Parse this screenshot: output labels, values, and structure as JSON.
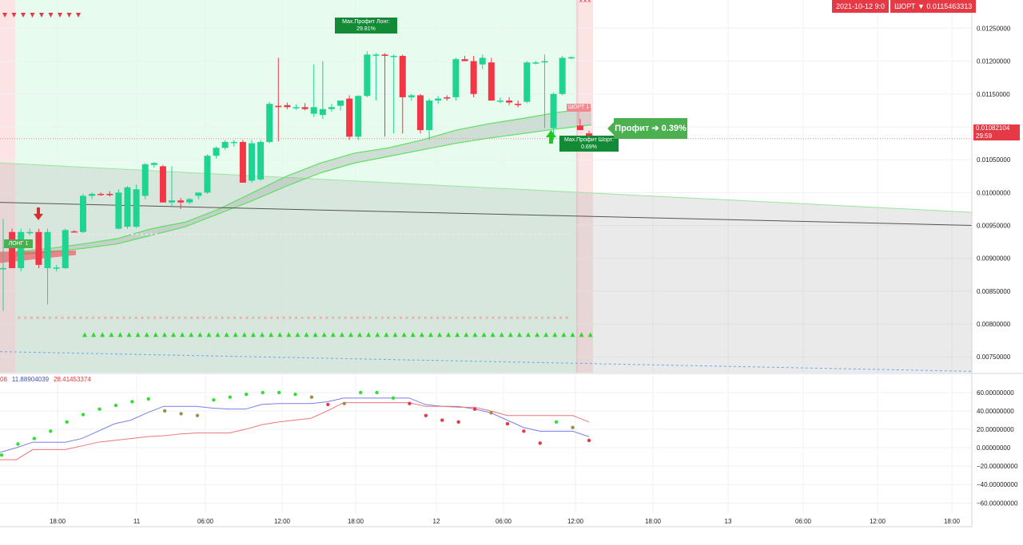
{
  "top_bar": {
    "date_label": "2021-10-12 9:0",
    "position_label": "ШОРТ",
    "position_arrow": "▼",
    "position_price": "0.0115463313"
  },
  "badges": {
    "max_profit_long_title": "Max.Профит Лонг:",
    "max_profit_long_value": "29.81%",
    "max_profit_short_title": "Max.Профит Шорт:",
    "max_profit_short_value": "0.69%",
    "profit_label": "Профит ➔ 0.39%",
    "short_tag": "ШОРТ 1",
    "long_tag": "ЛОНГ 1",
    "current_price": "0.01082104",
    "countdown": "29:59"
  },
  "indicator_legend": {
    "v1": "08",
    "v2": "11.88904039",
    "v3": "28.41453374",
    "color_v2": "#3f51b5",
    "color_v3": "#e53935"
  },
  "colors": {
    "up": "#1fd491",
    "down": "#f23645",
    "green_zone": "#e7fbee",
    "red_zone": "#fde4e4",
    "badge_green": "#138a36",
    "accent_red": "#e53945"
  },
  "chart_data": [
    {
      "type": "candlestick",
      "y_ticks": [
        "0.01250000",
        "0.01200000",
        "0.01150000",
        "0.01100000",
        "0.01050000",
        "0.01000000",
        "0.00950000",
        "0.00900000",
        "0.00850000",
        "0.00800000",
        "0.00750000"
      ],
      "y_tick_values": [
        0.0125,
        0.012,
        0.0115,
        0.011,
        0.0105,
        0.01,
        0.0095,
        0.009,
        0.0085,
        0.008,
        0.0075
      ],
      "ylim": [
        0.00726,
        0.01293
      ],
      "x_ticks": [
        "18:00",
        "11",
        "06:00",
        "12:00",
        "18:00",
        "12",
        "06:00",
        "12:00",
        "18:00",
        "13",
        "06:00",
        "12:00",
        "18:00"
      ],
      "candles": [
        {
          "o": 0.00885,
          "h": 0.0096,
          "l": 0.0082,
          "c": 0.00885
        },
        {
          "o": 0.0094,
          "h": 0.00945,
          "l": 0.00885,
          "c": 0.00885
        },
        {
          "o": 0.00885,
          "h": 0.00945,
          "l": 0.0088,
          "c": 0.0094
        },
        {
          "o": 0.00938,
          "h": 0.00945,
          "l": 0.00935,
          "c": 0.0094
        },
        {
          "o": 0.0094,
          "h": 0.00945,
          "l": 0.00885,
          "c": 0.0089
        },
        {
          "o": 0.00885,
          "h": 0.00945,
          "l": 0.0083,
          "c": 0.0094
        },
        {
          "o": 0.00885,
          "h": 0.0089,
          "l": 0.0088,
          "c": 0.00886
        },
        {
          "o": 0.00885,
          "h": 0.00945,
          "l": 0.00884,
          "c": 0.00943
        },
        {
          "o": 0.00941,
          "h": 0.00943,
          "l": 0.00939,
          "c": 0.0094
        },
        {
          "o": 0.0094,
          "h": 0.00998,
          "l": 0.00938,
          "c": 0.00995
        },
        {
          "o": 0.00995,
          "h": 0.01,
          "l": 0.0099,
          "c": 0.00998
        },
        {
          "o": 0.00998,
          "h": 0.01,
          "l": 0.00995,
          "c": 0.00997
        },
        {
          "o": 0.00998,
          "h": 0.01002,
          "l": 0.00994,
          "c": 0.00996
        },
        {
          "o": 0.00945,
          "h": 0.01005,
          "l": 0.00944,
          "c": 0.01
        },
        {
          "o": 0.00948,
          "h": 0.0101,
          "l": 0.00945,
          "c": 0.01008
        },
        {
          "o": 0.00948,
          "h": 0.01012,
          "l": 0.00946,
          "c": 0.01005
        },
        {
          "o": 0.00995,
          "h": 0.01045,
          "l": 0.0099,
          "c": 0.01043
        },
        {
          "o": 0.01042,
          "h": 0.01046,
          "l": 0.01038,
          "c": 0.01045
        },
        {
          "o": 0.0104,
          "h": 0.01042,
          "l": 0.00985,
          "c": 0.00985
        },
        {
          "o": 0.00985,
          "h": 0.0104,
          "l": 0.0098,
          "c": 0.00988
        },
        {
          "o": 0.00988,
          "h": 0.00992,
          "l": 0.00975,
          "c": 0.00985
        },
        {
          "o": 0.00985,
          "h": 0.00992,
          "l": 0.00982,
          "c": 0.0099
        },
        {
          "o": 0.00995,
          "h": 0.01,
          "l": 0.0099,
          "c": 0.01
        },
        {
          "o": 0.01,
          "h": 0.01058,
          "l": 0.00998,
          "c": 0.01056
        },
        {
          "o": 0.01056,
          "h": 0.0107,
          "l": 0.01052,
          "c": 0.01068
        },
        {
          "o": 0.01068,
          "h": 0.0108,
          "l": 0.01065,
          "c": 0.01077
        },
        {
          "o": 0.01076,
          "h": 0.0108,
          "l": 0.0107,
          "c": 0.01077
        },
        {
          "o": 0.01077,
          "h": 0.0108,
          "l": 0.01015,
          "c": 0.01015
        },
        {
          "o": 0.01018,
          "h": 0.0108,
          "l": 0.01015,
          "c": 0.01075
        },
        {
          "o": 0.0102,
          "h": 0.0108,
          "l": 0.01018,
          "c": 0.01077
        },
        {
          "o": 0.01077,
          "h": 0.01138,
          "l": 0.01075,
          "c": 0.01135
        },
        {
          "o": 0.01132,
          "h": 0.01205,
          "l": 0.01078,
          "c": 0.0113
        },
        {
          "o": 0.01133,
          "h": 0.01137,
          "l": 0.01127,
          "c": 0.0113
        },
        {
          "o": 0.0113,
          "h": 0.01134,
          "l": 0.01126,
          "c": 0.0113
        },
        {
          "o": 0.0113,
          "h": 0.01136,
          "l": 0.01125,
          "c": 0.01127
        },
        {
          "o": 0.0112,
          "h": 0.01195,
          "l": 0.01115,
          "c": 0.0113
        },
        {
          "o": 0.01118,
          "h": 0.012,
          "l": 0.01112,
          "c": 0.01127
        },
        {
          "o": 0.01127,
          "h": 0.01135,
          "l": 0.01123,
          "c": 0.0113
        },
        {
          "o": 0.01132,
          "h": 0.01138,
          "l": 0.01125,
          "c": 0.0114
        },
        {
          "o": 0.01143,
          "h": 0.01148,
          "l": 0.0108,
          "c": 0.01085
        },
        {
          "o": 0.01085,
          "h": 0.01148,
          "l": 0.0108,
          "c": 0.01147
        },
        {
          "o": 0.01147,
          "h": 0.01215,
          "l": 0.01145,
          "c": 0.0121
        },
        {
          "o": 0.0121,
          "h": 0.01212,
          "l": 0.0114,
          "c": 0.0121
        },
        {
          "o": 0.0121,
          "h": 0.01212,
          "l": 0.01085,
          "c": 0.01208
        },
        {
          "o": 0.01208,
          "h": 0.0121,
          "l": 0.0109,
          "c": 0.01208
        },
        {
          "o": 0.01208,
          "h": 0.0121,
          "l": 0.0109,
          "c": 0.01145
        },
        {
          "o": 0.01145,
          "h": 0.0115,
          "l": 0.0114,
          "c": 0.01148
        },
        {
          "o": 0.01148,
          "h": 0.0115,
          "l": 0.0109,
          "c": 0.01095
        },
        {
          "o": 0.01095,
          "h": 0.01143,
          "l": 0.0108,
          "c": 0.0114
        },
        {
          "o": 0.0114,
          "h": 0.01147,
          "l": 0.01135,
          "c": 0.01143
        },
        {
          "o": 0.01145,
          "h": 0.01148,
          "l": 0.0114,
          "c": 0.01143
        },
        {
          "o": 0.01145,
          "h": 0.01205,
          "l": 0.0114,
          "c": 0.01203
        },
        {
          "o": 0.01203,
          "h": 0.01208,
          "l": 0.012,
          "c": 0.012
        },
        {
          "o": 0.012,
          "h": 0.01208,
          "l": 0.01145,
          "c": 0.0115
        },
        {
          "o": 0.01195,
          "h": 0.0121,
          "l": 0.01188,
          "c": 0.01205
        },
        {
          "o": 0.01198,
          "h": 0.01205,
          "l": 0.0114,
          "c": 0.0114
        },
        {
          "o": 0.0114,
          "h": 0.01145,
          "l": 0.01136,
          "c": 0.0114
        },
        {
          "o": 0.0114,
          "h": 0.01145,
          "l": 0.01133,
          "c": 0.01137
        },
        {
          "o": 0.01135,
          "h": 0.0114,
          "l": 0.0113,
          "c": 0.01133
        },
        {
          "o": 0.01138,
          "h": 0.012,
          "l": 0.01136,
          "c": 0.01198
        },
        {
          "o": 0.01198,
          "h": 0.012,
          "l": 0.01195,
          "c": 0.01198
        },
        {
          "o": 0.01198,
          "h": 0.0121,
          "l": 0.01098,
          "c": 0.012
        },
        {
          "o": 0.01098,
          "h": 0.01152,
          "l": 0.0108,
          "c": 0.0115
        },
        {
          "o": 0.0115,
          "h": 0.01208,
          "l": 0.01148,
          "c": 0.01205
        },
        {
          "o": 0.01205,
          "h": 0.01207,
          "l": 0.01203,
          "c": 0.01206
        },
        {
          "o": 0.01102,
          "h": 0.01112,
          "l": 0.01095,
          "c": 0.01095
        },
        {
          "o": 0.0109,
          "h": 0.01094,
          "l": 0.01082,
          "c": 0.01085
        }
      ],
      "current_price_line": 0.01082104,
      "trend_line": {
        "y_start": 0.00985,
        "y_end": 0.0095
      },
      "dotted_level": 0.009365,
      "lower_dash_line": {
        "y_start": 0.00758,
        "y_end": 0.00728
      },
      "x_marker_level": 0.0081,
      "triangle_level": 0.00784,
      "cloud_upper": [
        0.0091,
        0.00915,
        0.00922,
        0.0093,
        0.00945,
        0.00955,
        0.00975,
        0.01,
        0.01025,
        0.01045,
        0.0106,
        0.01068,
        0.0108,
        0.01095,
        0.01105,
        0.01113,
        0.01122,
        0.01128
      ],
      "cloud_lower": [
        0.00905,
        0.0091,
        0.00915,
        0.00922,
        0.00935,
        0.00948,
        0.00968,
        0.00988,
        0.0101,
        0.0103,
        0.01045,
        0.01055,
        0.01065,
        0.01075,
        0.01083,
        0.0109,
        0.01097,
        0.01103
      ]
    },
    {
      "type": "line",
      "y_ticks": [
        "60.00000000",
        "40.00000000",
        "20.00000000",
        "0.00000000",
        "−20.00000000",
        "−40.00000000",
        "−60.00000000"
      ],
      "y_tick_values": [
        60,
        40,
        20,
        0,
        -20,
        -40,
        -60
      ],
      "ylim": [
        -71,
        79
      ],
      "series": [
        {
          "color": "#7b7ee6",
          "values": [
            -5,
            0,
            6,
            6,
            6,
            10,
            18,
            26,
            30,
            38,
            45,
            45,
            45,
            43,
            42,
            42,
            47,
            48,
            48,
            48,
            50,
            54,
            54,
            54,
            54,
            54,
            47,
            45,
            45,
            42,
            38,
            30,
            22,
            18,
            18,
            18,
            12
          ]
        },
        {
          "color": "#ee7676",
          "values": [
            -13,
            -13,
            -2,
            -2,
            -2,
            2,
            6,
            8,
            10,
            12,
            13,
            15,
            16,
            16,
            16,
            20,
            25,
            28,
            30,
            32,
            40,
            49,
            49,
            49,
            49,
            49,
            45,
            45,
            44,
            44,
            40,
            35,
            35,
            35,
            35,
            35,
            28
          ]
        }
      ],
      "dots": [
        {
          "v": -8,
          "c": "#32e032"
        },
        {
          "v": 4,
          "c": "#32e032"
        },
        {
          "v": 10,
          "c": "#32e032"
        },
        {
          "v": 18,
          "c": "#32e032"
        },
        {
          "v": 28,
          "c": "#32e032"
        },
        {
          "v": 36,
          "c": "#32e032"
        },
        {
          "v": 42,
          "c": "#32e032"
        },
        {
          "v": 46,
          "c": "#32e032"
        },
        {
          "v": 50,
          "c": "#32e032"
        },
        {
          "v": 53,
          "c": "#32e032"
        },
        {
          "v": 40,
          "c": "#9e8f4a"
        },
        {
          "v": 37,
          "c": "#9e8f4a"
        },
        {
          "v": 35,
          "c": "#9e8f4a"
        },
        {
          "v": 52,
          "c": "#32e032"
        },
        {
          "v": 55,
          "c": "#32e032"
        },
        {
          "v": 58,
          "c": "#32e032"
        },
        {
          "v": 60,
          "c": "#32e032"
        },
        {
          "v": 60,
          "c": "#32e032"
        },
        {
          "v": 58,
          "c": "#32e032"
        },
        {
          "v": 55,
          "c": "#9e8f4a"
        },
        {
          "v": 47,
          "c": "#e53945"
        },
        {
          "v": 48,
          "c": "#9e8f4a"
        },
        {
          "v": 60,
          "c": "#32e032"
        },
        {
          "v": 60,
          "c": "#32e032"
        },
        {
          "v": 54,
          "c": "#32e032"
        },
        {
          "v": 48,
          "c": "#e53945"
        },
        {
          "v": 35,
          "c": "#e53945"
        },
        {
          "v": 30,
          "c": "#e53945"
        },
        {
          "v": 28,
          "c": "#e53945"
        },
        {
          "v": 42,
          "c": "#e53945"
        },
        {
          "v": 38,
          "c": "#9e8f4a"
        },
        {
          "v": 26,
          "c": "#e53945"
        },
        {
          "v": 18,
          "c": "#e53945"
        },
        {
          "v": 5,
          "c": "#e53945"
        },
        {
          "v": 28,
          "c": "#32e032"
        },
        {
          "v": 22,
          "c": "#9e8f4a"
        },
        {
          "v": 8,
          "c": "#e53945"
        }
      ]
    }
  ]
}
